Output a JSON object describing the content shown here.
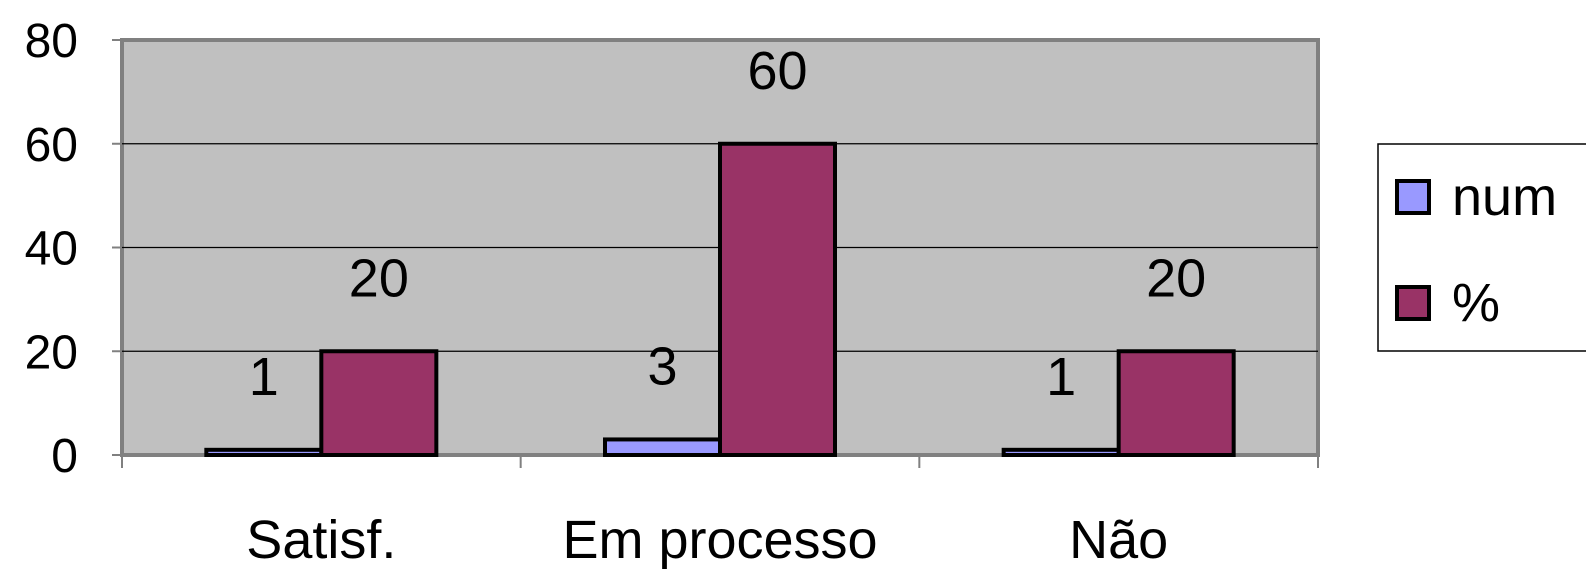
{
  "chart_data": {
    "type": "bar",
    "title": "",
    "xlabel": "",
    "ylabel": "",
    "categories": [
      "Satisf.",
      "Em processo",
      "Não"
    ],
    "series": [
      {
        "name": "num",
        "values": [
          1,
          3,
          1
        ],
        "color": "#9999ff"
      },
      {
        "name": "%",
        "values": [
          20,
          60,
          20
        ],
        "color": "#993366"
      }
    ],
    "ylim": [
      0,
      80
    ],
    "yticks": [
      0,
      20,
      40,
      60,
      80
    ],
    "grid": true,
    "plot_background": "#c0c0c0",
    "legend_position": "right",
    "data_labels": true
  }
}
